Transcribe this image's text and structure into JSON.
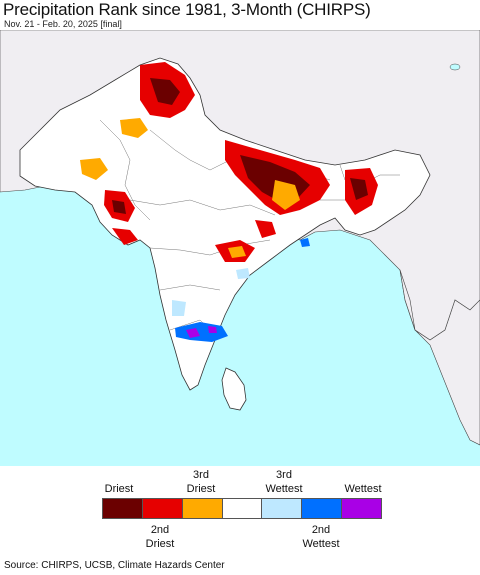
{
  "title": "Precipitation Rank since 1981, 3-Month (CHIRPS)",
  "subtitle": "Nov. 21 - Feb. 20, 2025 [final]",
  "legend": {
    "top_labels": [
      "Driest",
      "3rd\nDriest",
      "3rd\nWettest",
      "Wettest"
    ],
    "bottom_labels": [
      "2nd\nDriest",
      "2nd\nWettest"
    ],
    "colors": [
      "#6b0000",
      "#e60000",
      "#ffaa00",
      "#ffffff",
      "#bee8ff",
      "#0070ff",
      "#a900e6"
    ]
  },
  "map_colors": {
    "ocean": "#bffcff",
    "land": "#ffffff",
    "outside_land": "#f0eef2",
    "border": "#333333"
  },
  "source": "Source: CHIRPS, UCSB, Climate Hazards Center"
}
